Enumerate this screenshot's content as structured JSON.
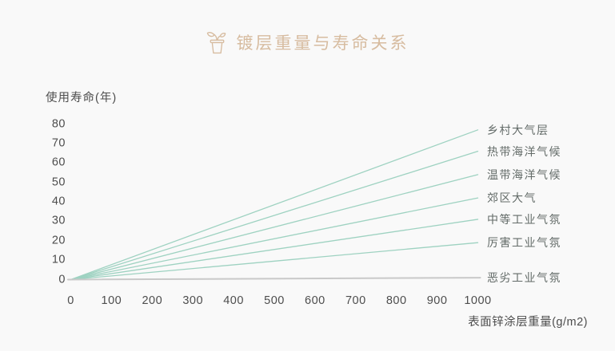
{
  "page": {
    "background": "#f9f9f9"
  },
  "header": {
    "title": "镀层重量与寿命关系",
    "icon": "potted-plant-icon",
    "title_color": "#d7bca0"
  },
  "chart_data": {
    "type": "line",
    "title": "镀层重量与寿命关系",
    "xlabel": "表面锌涂层重量(g/m2)",
    "ylabel": "使用寿命(年)",
    "xlim": [
      0,
      1000
    ],
    "ylim": [
      0,
      80
    ],
    "x_ticks": [
      0,
      100,
      200,
      300,
      400,
      500,
      600,
      700,
      800,
      900,
      1000
    ],
    "y_ticks": [
      0,
      10,
      20,
      30,
      40,
      50,
      60,
      70,
      80
    ],
    "grid": false,
    "legend_position": "right-at-line-ends",
    "x": [
      0,
      1000
    ],
    "series": [
      {
        "name": "乡村大气层",
        "values": [
          0,
          77
        ],
        "color": "#9ed2c1"
      },
      {
        "name": "热带海洋气候",
        "values": [
          0,
          66
        ],
        "color": "#9ed2c1"
      },
      {
        "name": "温带海洋气候",
        "values": [
          0,
          54
        ],
        "color": "#9ed2c1"
      },
      {
        "name": "郊区大气",
        "values": [
          0,
          42
        ],
        "color": "#9ed2c1"
      },
      {
        "name": "中等工业气氛",
        "values": [
          0,
          31
        ],
        "color": "#9ed2c1"
      },
      {
        "name": "厉害工业气氛",
        "values": [
          0,
          19
        ],
        "color": "#9ed2c1"
      },
      {
        "name": "恶劣工业气氛",
        "values": [
          0,
          1
        ],
        "color": "#c9c9c9"
      }
    ],
    "axis_text_color": "#4d4d4d",
    "series_label_color": "#636b68"
  }
}
